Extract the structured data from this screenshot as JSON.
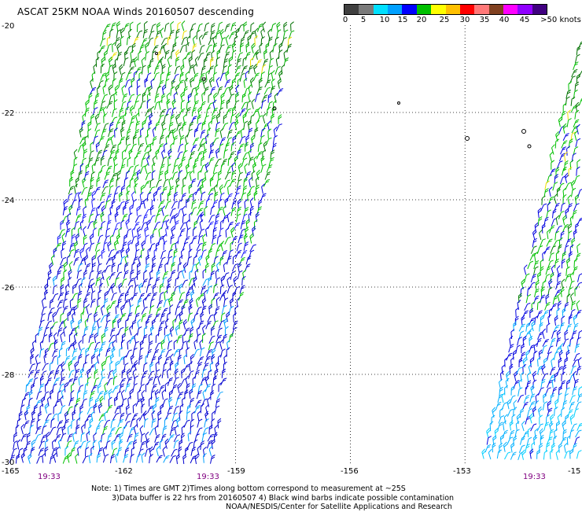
{
  "title": "ASCAT 25KM NOAA Winds 20160507 descending",
  "colorbar": {
    "colors": [
      "#404040",
      "#7a7a7a",
      "#00e0ff",
      "#00a0ff",
      "#0000ff",
      "#00c000",
      "#ffff00",
      "#ffc000",
      "#ff0000",
      "#ff7878",
      "#804020",
      "#ff00ff",
      "#9000ff",
      "#400080"
    ],
    "labels": [
      "0",
      "5",
      "10",
      "15",
      "20",
      "25",
      "30",
      "35",
      "40",
      "45",
      ">50 knots"
    ]
  },
  "axes": {
    "lat_labels": [
      "-20",
      "-22",
      "-24",
      "-26",
      "-28",
      "-30"
    ],
    "lon_labels": [
      "-165",
      "-162",
      "-159",
      "-156",
      "-153",
      "-15"
    ]
  },
  "times": [
    "19:33",
    "19:33",
    "19:33"
  ],
  "notes": [
    "Note: 1) Times are GMT 2)Times along bottom correspond to measurement at ~25S",
    "3)Data buffer is 22 hrs from 20160507 4) Black wind barbs indicate possible contamination",
    "NOAA/NESDIS/Center for Satellite Applications and Research"
  ]
}
